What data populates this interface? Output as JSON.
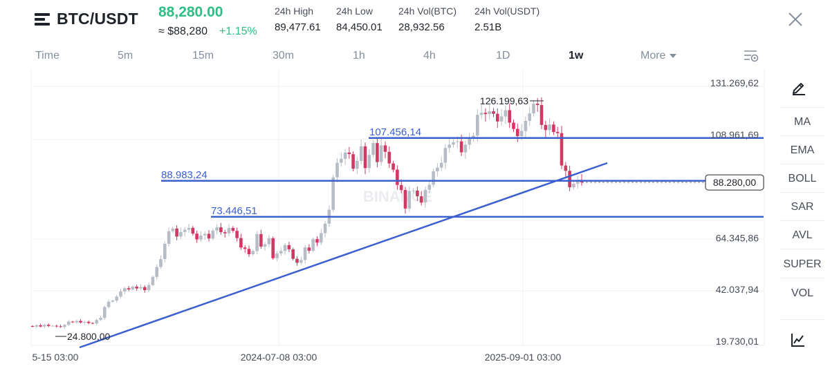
{
  "header": {
    "pair": "BTC/USDT",
    "last_price": "88,280.00",
    "approx_price": "≈ $88,280",
    "change": "+1.15%",
    "stats": [
      {
        "label": "24h High",
        "value": "89,477.61"
      },
      {
        "label": "24h Low",
        "value": "84,450.01"
      },
      {
        "label": "24h Vol(BTC)",
        "value": "28,932.56"
      },
      {
        "label": "24h Vol(USDT)",
        "value": "2.51B"
      }
    ]
  },
  "intervals": {
    "items": [
      "Time",
      "5m",
      "15m",
      "30m",
      "1h",
      "4h",
      "1D",
      "1w"
    ],
    "active": "1w",
    "more": "More"
  },
  "sidebar": {
    "tools": [
      "MA",
      "EMA",
      "BOLL",
      "SAR",
      "AVL",
      "SUPER",
      "VOL"
    ]
  },
  "chart": {
    "watermark": "BINANCE",
    "current_price_label": "88.280,00",
    "y_ticks": [
      "131.269,62",
      "108.961,69",
      "64.345,86",
      "42.037,94",
      "19.730,01"
    ],
    "x_ticks": [
      "5-15 03:00",
      "2024-07-08 03:00",
      "2025-09-01 03:00"
    ],
    "annotations": [
      "126.199,63",
      "107.456,14",
      "88.983,24",
      "73.446,51",
      "24.800,00"
    ],
    "colors": {
      "up": "#b7bdc6",
      "down": "#cf3a63",
      "line": "#3c5fcf",
      "up_text": "#2ebd85"
    }
  },
  "chart_data": {
    "type": "candlestick",
    "ylim": [
      17000,
      134000
    ],
    "y_ticks": [
      131269.62,
      108961.69,
      64345.86,
      42037.94,
      19730.01
    ],
    "x_ticks": [
      "5-15 03:00",
      "2024-07-08 03:00",
      "2025-09-01 03:00"
    ],
    "current_price": 88280.0,
    "horizontal_lines": [
      107456.14,
      88983.24,
      73446.51
    ],
    "labeled_points": {
      "high": 126199.63,
      "low": 24800.0
    },
    "series": [
      {
        "close": [
          26000,
          26600,
          26100,
          26800,
          26300,
          26400,
          26200,
          25900,
          26800,
          28200,
          27900,
          28500,
          27800,
          28100,
          27600,
          27400,
          28900,
          29800,
          34500,
          36800,
          37300,
          39000,
          41200,
          42600,
          42100,
          43300,
          42500,
          43100,
          41800,
          44000,
          47500,
          51800,
          55200,
          61800,
          67200,
          68400,
          64900,
          66900,
          67900,
          68700,
          66200,
          63700,
          65400,
          66100,
          64100,
          67500,
          68900,
          66800,
          66300,
          68600,
          67400,
          64300,
          60200,
          59600,
          57300,
          58700,
          66000,
          60600,
          61600,
          64200,
          55600,
          57600,
          58700,
          61200,
          59400,
          55300,
          53600,
          54800,
          60200,
          58800,
          63800,
          62300,
          66400,
          70500,
          76500,
          90500,
          96800,
          98500,
          101200,
          100500,
          94200,
          97600,
          103900,
          94500,
          100200,
          105300,
          97100,
          104300,
          101500,
          96500,
          93800,
          87200,
          85000,
          77000,
          84600,
          84800,
          82300,
          79600,
          85100,
          87300,
          93100,
          94700,
          96800,
          103200,
          104600,
          105700,
          106000,
          101300,
          104600,
          107200,
          108500,
          117500,
          118400,
          117800,
          119000,
          117900,
          114600,
          116800,
          119500,
          114100,
          111400,
          108300,
          110500,
          114900,
          118100,
          122300,
          121700,
          113100,
          110900,
          113300,
          110100,
          109600,
          95600,
          93300,
          86200,
          87700,
          89400,
          88280
        ]
      }
    ]
  }
}
